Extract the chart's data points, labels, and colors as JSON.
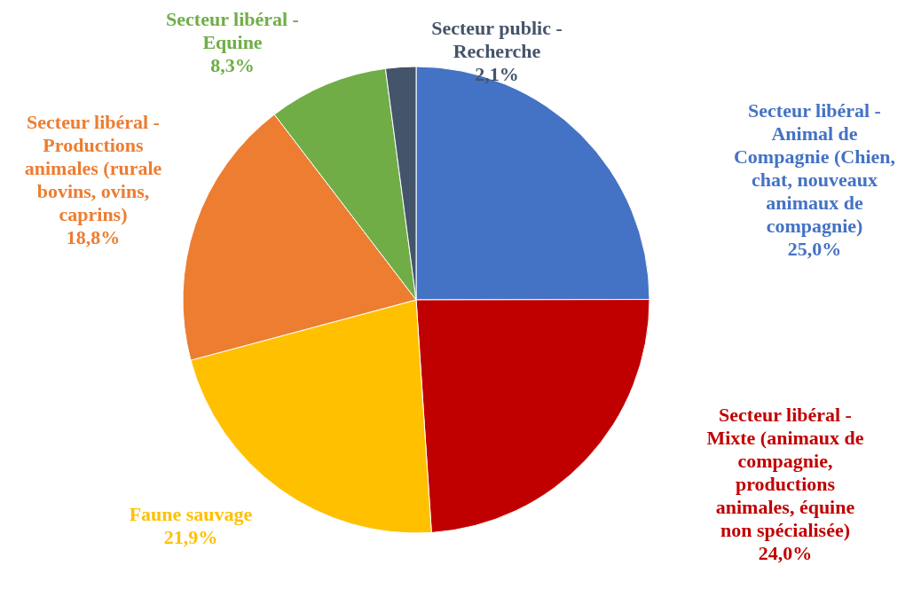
{
  "chart_data": {
    "type": "pie",
    "categories": [
      "Secteur libéral - Animal de Compagnie (Chien, chat, nouveaux animaux de compagnie)",
      "Secteur libéral - Mixte (animaux de compagnie, productions animales, équine non spécialisée)",
      "Faune sauvage",
      "Secteur libéral - Productions animales (rurale bovins, ovins, caprins)",
      "Secteur libéral - Equine",
      "Secteur public - Recherche"
    ],
    "values": [
      25.0,
      24.0,
      21.9,
      18.8,
      8.3,
      2.1
    ],
    "value_labels": [
      "25,0%",
      "24,0%",
      "21,9%",
      "18,8%",
      "8,3%",
      "2,1%"
    ],
    "colors": [
      "#4472c4",
      "#c00000",
      "#ffc000",
      "#ed7d31",
      "#70ad47",
      "#44546a"
    ]
  }
}
